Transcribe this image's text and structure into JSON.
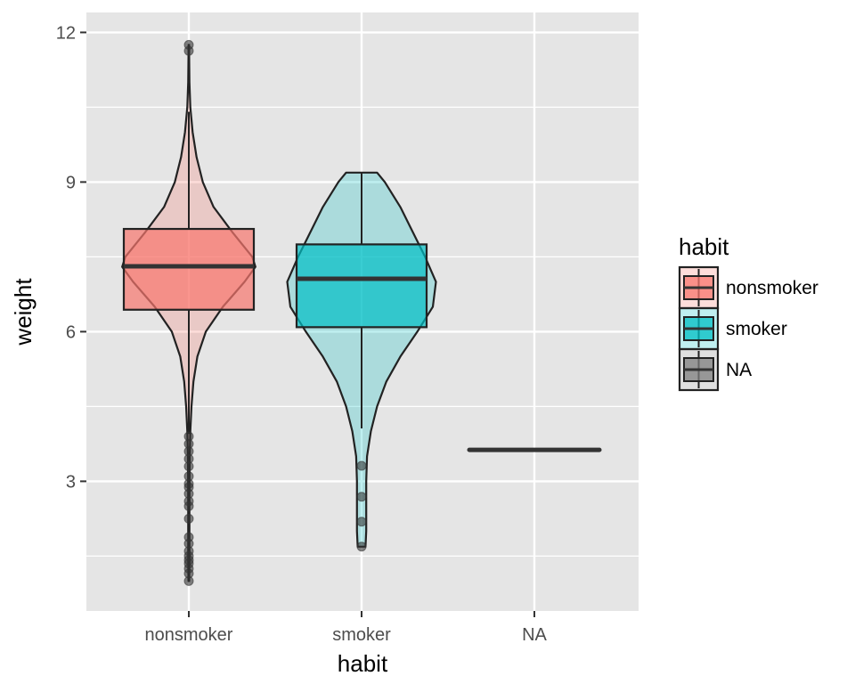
{
  "chart_data": {
    "type": "violin",
    "xlabel": "habit",
    "ylabel": "weight",
    "categories": [
      "nonsmoker",
      "smoker",
      "NA"
    ],
    "ylim": [
      0.4,
      12.4
    ],
    "yticks": [
      3,
      6,
      9,
      12
    ],
    "grid": true,
    "legend": {
      "title": "habit",
      "position": "right",
      "entries": [
        "nonsmoker",
        "smoker",
        "NA"
      ]
    },
    "colors": {
      "nonsmoker": "#F8766D",
      "smoker": "#00BFC4",
      "NA": "#7F7F7F",
      "panel": "#E5E5E5",
      "grid": "#FFFFFF"
    },
    "series": [
      {
        "category": "nonsmoker",
        "box": {
          "q1": 6.44,
          "median": 7.31,
          "q3": 8.06
        },
        "whiskers": [
          3.95,
          10.41
        ],
        "violin": [
          [
            1.0,
            0.005
          ],
          [
            1.5,
            0.008
          ],
          [
            2.0,
            0.008
          ],
          [
            2.5,
            0.008
          ],
          [
            3.0,
            0.009
          ],
          [
            3.5,
            0.012
          ],
          [
            4.0,
            0.02
          ],
          [
            4.5,
            0.034
          ],
          [
            5.0,
            0.06
          ],
          [
            5.5,
            0.11
          ],
          [
            6.0,
            0.22
          ],
          [
            6.5,
            0.44
          ],
          [
            7.0,
            0.72
          ],
          [
            7.3,
            0.86
          ],
          [
            7.5,
            0.82
          ],
          [
            8.0,
            0.56
          ],
          [
            8.5,
            0.32
          ],
          [
            9.0,
            0.18
          ],
          [
            9.5,
            0.1
          ],
          [
            10.0,
            0.05
          ],
          [
            10.5,
            0.02
          ],
          [
            11.0,
            0.008
          ],
          [
            11.5,
            0.005
          ],
          [
            11.75,
            0.004
          ]
        ],
        "outliers": [
          11.75,
          11.63,
          3.9,
          3.75,
          3.6,
          3.45,
          3.3,
          3.1,
          2.95,
          2.88,
          2.75,
          2.6,
          2.5,
          2.25,
          1.88,
          1.75,
          1.6,
          1.5,
          1.42,
          1.35,
          1.25,
          1.15,
          1.0
        ]
      },
      {
        "category": "smoker",
        "box": {
          "q1": 6.09,
          "median": 7.06,
          "q3": 7.75
        },
        "whiskers": [
          4.06,
          9.19
        ],
        "violin": [
          [
            1.69,
            0.05
          ],
          [
            2.0,
            0.06
          ],
          [
            2.5,
            0.06
          ],
          [
            3.0,
            0.06
          ],
          [
            3.5,
            0.07
          ],
          [
            4.0,
            0.12
          ],
          [
            4.5,
            0.2
          ],
          [
            5.0,
            0.32
          ],
          [
            5.5,
            0.5
          ],
          [
            6.0,
            0.72
          ],
          [
            6.5,
            0.92
          ],
          [
            7.0,
            0.96
          ],
          [
            7.5,
            0.82
          ],
          [
            8.0,
            0.66
          ],
          [
            8.5,
            0.5
          ],
          [
            9.0,
            0.3
          ],
          [
            9.19,
            0.2
          ]
        ],
        "outliers": [
          3.31,
          2.69,
          2.19,
          1.69
        ]
      },
      {
        "category": "NA",
        "box": {
          "q1": 3.63,
          "median": 3.63,
          "q3": 3.63
        },
        "whiskers": [
          3.63,
          3.63
        ],
        "violin": [],
        "outliers": []
      }
    ]
  }
}
